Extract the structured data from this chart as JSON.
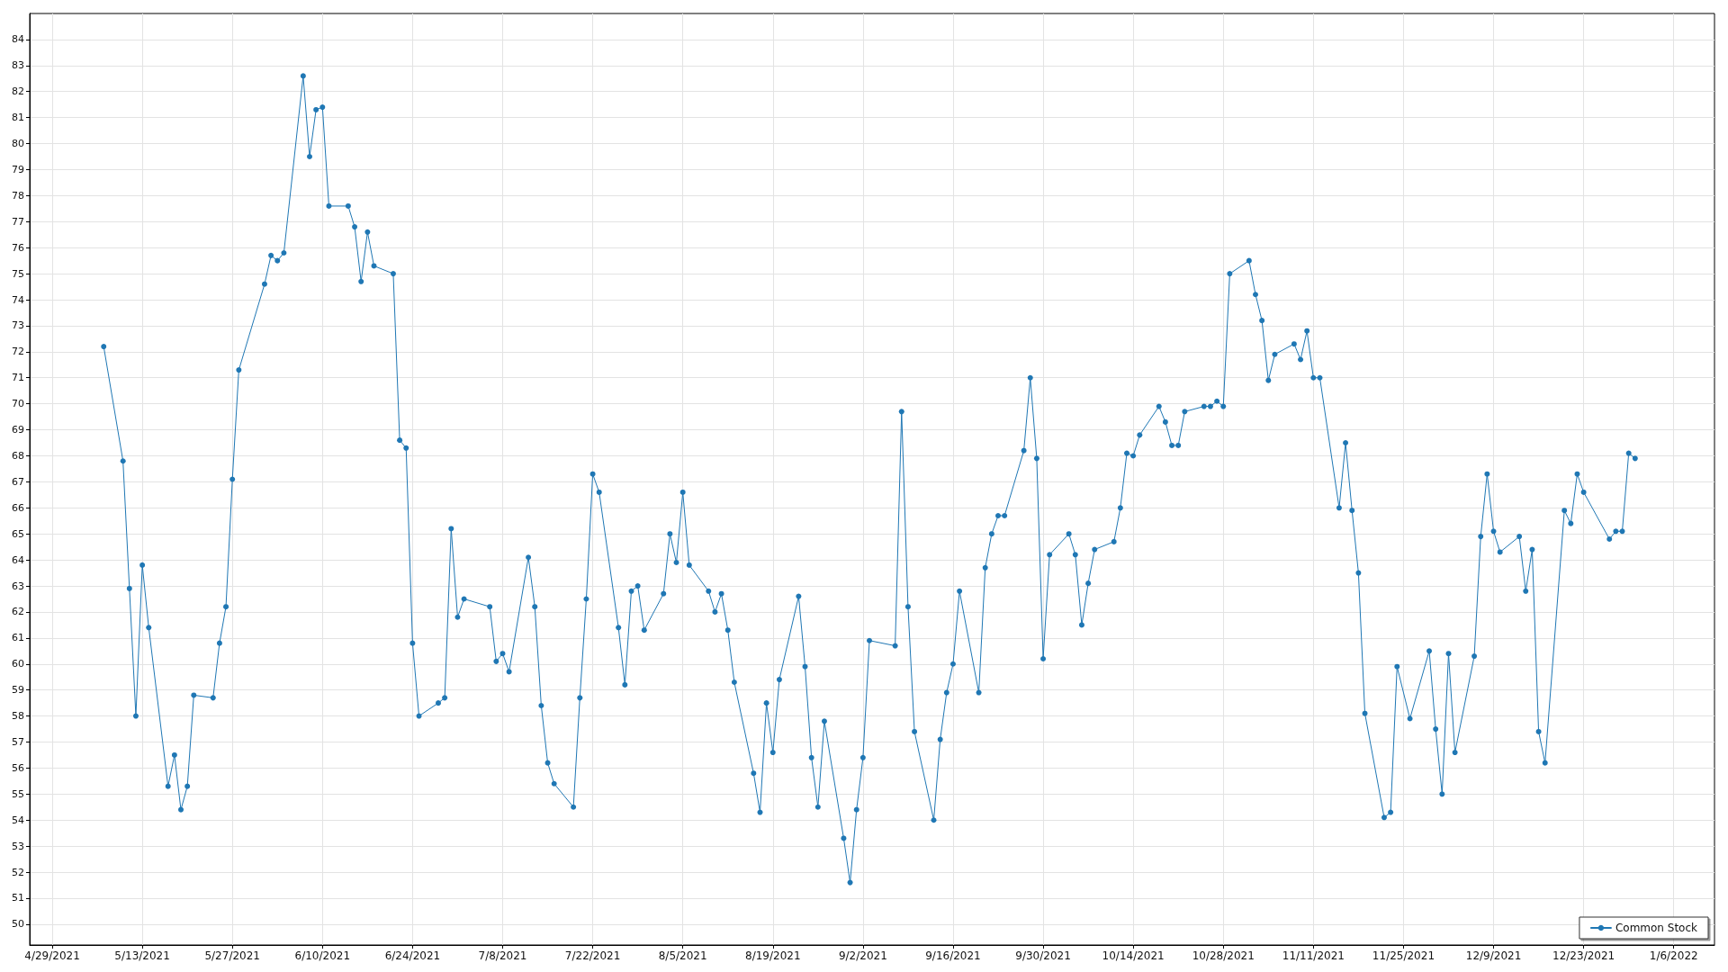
{
  "chart_data": {
    "type": "line",
    "x": [
      "2021-05-07",
      "2021-05-10",
      "2021-05-11",
      "2021-05-12",
      "2021-05-13",
      "2021-05-14",
      "2021-05-17",
      "2021-05-18",
      "2021-05-19",
      "2021-05-20",
      "2021-05-21",
      "2021-05-24",
      "2021-05-25",
      "2021-05-26",
      "2021-05-27",
      "2021-05-28",
      "2021-06-01",
      "2021-06-02",
      "2021-06-03",
      "2021-06-04",
      "2021-06-07",
      "2021-06-08",
      "2021-06-09",
      "2021-06-10",
      "2021-06-11",
      "2021-06-14",
      "2021-06-15",
      "2021-06-16",
      "2021-06-17",
      "2021-06-18",
      "2021-06-21",
      "2021-06-22",
      "2021-06-23",
      "2021-06-24",
      "2021-06-25",
      "2021-06-28",
      "2021-06-29",
      "2021-06-30",
      "2021-07-01",
      "2021-07-02",
      "2021-07-06",
      "2021-07-07",
      "2021-07-08",
      "2021-07-09",
      "2021-07-12",
      "2021-07-13",
      "2021-07-14",
      "2021-07-15",
      "2021-07-16",
      "2021-07-19",
      "2021-07-20",
      "2021-07-21",
      "2021-07-22",
      "2021-07-23",
      "2021-07-26",
      "2021-07-27",
      "2021-07-28",
      "2021-07-29",
      "2021-07-30",
      "2021-08-02",
      "2021-08-03",
      "2021-08-04",
      "2021-08-05",
      "2021-08-06",
      "2021-08-09",
      "2021-08-10",
      "2021-08-11",
      "2021-08-12",
      "2021-08-13",
      "2021-08-16",
      "2021-08-17",
      "2021-08-18",
      "2021-08-19",
      "2021-08-20",
      "2021-08-23",
      "2021-08-24",
      "2021-08-25",
      "2021-08-26",
      "2021-08-27",
      "2021-08-30",
      "2021-08-31",
      "2021-09-01",
      "2021-09-02",
      "2021-09-03",
      "2021-09-07",
      "2021-09-08",
      "2021-09-09",
      "2021-09-10",
      "2021-09-13",
      "2021-09-14",
      "2021-09-15",
      "2021-09-16",
      "2021-09-17",
      "2021-09-20",
      "2021-09-21",
      "2021-09-22",
      "2021-09-23",
      "2021-09-24",
      "2021-09-27",
      "2021-09-28",
      "2021-09-29",
      "2021-09-30",
      "2021-10-01",
      "2021-10-04",
      "2021-10-05",
      "2021-10-06",
      "2021-10-07",
      "2021-10-08",
      "2021-10-11",
      "2021-10-12",
      "2021-10-13",
      "2021-10-14",
      "2021-10-15",
      "2021-10-18",
      "2021-10-19",
      "2021-10-20",
      "2021-10-21",
      "2021-10-22",
      "2021-10-25",
      "2021-10-26",
      "2021-10-27",
      "2021-10-28",
      "2021-10-29",
      "2021-11-01",
      "2021-11-02",
      "2021-11-03",
      "2021-11-04",
      "2021-11-05",
      "2021-11-08",
      "2021-11-09",
      "2021-11-10",
      "2021-11-11",
      "2021-11-12",
      "2021-11-15",
      "2021-11-16",
      "2021-11-17",
      "2021-11-18",
      "2021-11-19",
      "2021-11-22",
      "2021-11-23",
      "2021-11-24",
      "2021-11-26",
      "2021-11-29",
      "2021-11-30",
      "2021-12-01",
      "2021-12-02",
      "2021-12-03",
      "2021-12-06",
      "2021-12-07",
      "2021-12-08",
      "2021-12-09",
      "2021-12-10",
      "2021-12-13",
      "2021-12-14",
      "2021-12-15",
      "2021-12-16",
      "2021-12-17",
      "2021-12-20",
      "2021-12-21",
      "2021-12-22",
      "2021-12-23",
      "2021-12-27",
      "2021-12-28",
      "2021-12-29",
      "2021-12-30",
      "2021-12-31"
    ],
    "series": [
      {
        "name": "Common Stock",
        "color": "#1f77b4",
        "values": [
          72.2,
          67.8,
          62.9,
          58.0,
          63.8,
          61.4,
          55.3,
          56.5,
          54.4,
          55.3,
          58.8,
          58.7,
          60.8,
          62.2,
          67.1,
          71.3,
          74.6,
          75.7,
          75.5,
          75.8,
          82.6,
          79.5,
          81.3,
          81.4,
          77.6,
          77.6,
          76.8,
          74.7,
          76.6,
          75.3,
          75.0,
          68.6,
          68.3,
          60.8,
          58.0,
          58.5,
          58.7,
          65.2,
          61.8,
          62.5,
          62.2,
          60.1,
          60.4,
          59.7,
          64.1,
          62.2,
          58.4,
          56.2,
          55.4,
          54.5,
          58.7,
          62.5,
          67.3,
          66.6,
          61.4,
          59.2,
          62.8,
          63.0,
          61.3,
          62.7,
          65.0,
          63.9,
          66.6,
          63.8,
          62.8,
          62.0,
          62.7,
          61.3,
          59.3,
          55.8,
          54.3,
          58.5,
          56.6,
          59.4,
          62.6,
          59.9,
          56.4,
          54.5,
          57.8,
          53.3,
          51.6,
          54.4,
          56.4,
          60.9,
          60.7,
          69.7,
          62.2,
          57.4,
          54.0,
          57.1,
          58.9,
          60.0,
          62.8,
          58.9,
          63.7,
          65.0,
          65.7,
          65.7,
          68.2,
          71.0,
          67.9,
          60.2,
          64.2,
          65.0,
          64.2,
          61.5,
          63.1,
          64.4,
          64.7,
          66.0,
          68.1,
          68.0,
          68.8,
          69.9,
          69.3,
          68.4,
          68.4,
          69.7,
          69.9,
          69.9,
          70.1,
          69.9,
          75.0,
          75.5,
          74.2,
          73.2,
          70.9,
          71.9,
          72.3,
          71.7,
          72.8,
          71.0,
          71.0,
          66.0,
          68.5,
          65.9,
          63.5,
          58.1,
          54.1,
          54.3,
          59.9,
          57.9,
          60.5,
          57.5,
          55.0,
          60.4,
          56.6,
          60.3,
          64.9,
          67.3,
          65.1,
          64.3,
          64.9,
          62.8,
          64.4,
          57.4,
          56.2,
          65.9,
          65.4,
          67.3,
          66.6,
          64.8,
          65.1,
          65.1,
          68.1,
          67.9
        ]
      }
    ],
    "xlim": [
      "2021-04-25T12:00",
      "2022-01-12T08:00"
    ],
    "xticks": [
      {
        "value": "2021-04-29",
        "label": "4/29/2021"
      },
      {
        "value": "2021-05-13",
        "label": "5/13/2021"
      },
      {
        "value": "2021-05-27",
        "label": "5/27/2021"
      },
      {
        "value": "2021-06-10",
        "label": "6/10/2021"
      },
      {
        "value": "2021-06-24",
        "label": "6/24/2021"
      },
      {
        "value": "2021-07-08",
        "label": "7/8/2021"
      },
      {
        "value": "2021-07-22",
        "label": "7/22/2021"
      },
      {
        "value": "2021-08-05",
        "label": "8/5/2021"
      },
      {
        "value": "2021-08-19",
        "label": "8/19/2021"
      },
      {
        "value": "2021-09-02",
        "label": "9/2/2021"
      },
      {
        "value": "2021-09-16",
        "label": "9/16/2021"
      },
      {
        "value": "2021-09-30",
        "label": "9/30/2021"
      },
      {
        "value": "2021-10-14",
        "label": "10/14/2021"
      },
      {
        "value": "2021-10-28",
        "label": "10/28/2021"
      },
      {
        "value": "2021-11-11",
        "label": "11/11/2021"
      },
      {
        "value": "2021-11-25",
        "label": "11/25/2021"
      },
      {
        "value": "2021-12-09",
        "label": "12/9/2021"
      },
      {
        "value": "2021-12-23",
        "label": "12/23/2021"
      },
      {
        "value": "2022-01-06",
        "label": "1/6/2022"
      }
    ],
    "ylim": [
      49.2,
      85
    ],
    "yticks": [
      50,
      51,
      52,
      53,
      54,
      55,
      56,
      57,
      58,
      59,
      60,
      61,
      62,
      63,
      64,
      65,
      66,
      67,
      68,
      69,
      70,
      71,
      72,
      73,
      74,
      75,
      76,
      77,
      78,
      79,
      80,
      81,
      82,
      83,
      84
    ],
    "grid": true,
    "legend": "bottom right",
    "marker": "circle",
    "line_style": "solid"
  }
}
